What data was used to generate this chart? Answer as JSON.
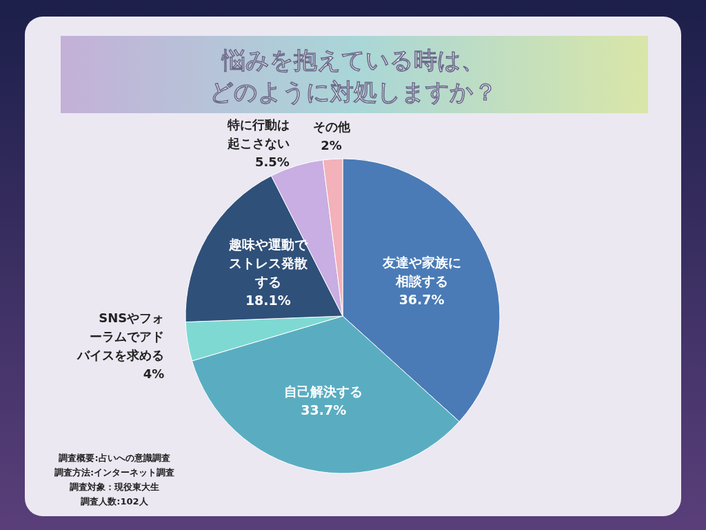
{
  "chart_data": {
    "type": "pie",
    "title": "悩みを抱えている時は、どのように対処しますか？",
    "categories": [
      "友達や家族に相談する",
      "自己解決する",
      "SNSやフォーラムでアドバイスを求める",
      "趣味や運動でストレス発散する",
      "特に行動は起こさない",
      "その他"
    ],
    "values": [
      36.7,
      33.7,
      4,
      18.1,
      5.5,
      2
    ],
    "value_labels": [
      "36.7%",
      "33.7%",
      "4%",
      "18.1%",
      "5.5%",
      "2%"
    ],
    "colors": [
      "#4a7bb7",
      "#5aadc1",
      "#7fd9d3",
      "#2f5079",
      "#c8aee2",
      "#f3b1b9"
    ],
    "annotations": [
      "調査概要:占いへの意識調査",
      "調査方法:インターネット調査",
      "調査対象：現役東大生",
      "調査人数:102人"
    ]
  }
}
